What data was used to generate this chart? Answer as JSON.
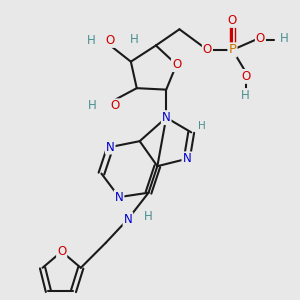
{
  "bg_color": "#e8e8e8",
  "bond_color": "#1a1a1a",
  "bond_width": 1.5,
  "atom_colors": {
    "N": "#0000cc",
    "O": "#cc0000",
    "P": "#cc7700",
    "H": "#4a9090",
    "C": "#1a1a1a"
  },
  "font_size": 8.5,
  "fig_size": [
    3.0,
    3.0
  ],
  "dpi": 100
}
